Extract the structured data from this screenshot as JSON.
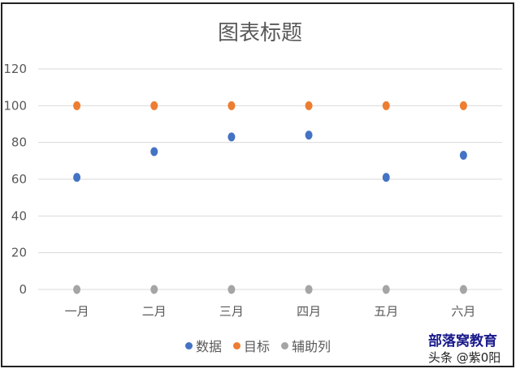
{
  "chart_data": {
    "type": "scatter",
    "title": "图表标题",
    "categories": [
      "一月",
      "二月",
      "三月",
      "四月",
      "五月",
      "六月"
    ],
    "series": [
      {
        "name": "数据",
        "color": "#4472C4",
        "values": [
          61,
          75,
          83,
          84,
          61,
          73
        ]
      },
      {
        "name": "目标",
        "color": "#ED7D31",
        "values": [
          100,
          100,
          100,
          100,
          100,
          100
        ]
      },
      {
        "name": "辅助列",
        "color": "#A5A5A5",
        "values": [
          0,
          0,
          0,
          0,
          0,
          0
        ]
      }
    ],
    "ylim": [
      0,
      120
    ],
    "yticks": [
      "0",
      "20",
      "40",
      "60",
      "80",
      "100",
      "120"
    ],
    "grid": true,
    "legend": "bottom"
  },
  "watermark": {
    "line1": "部落窝教育",
    "line2": "头条 @紫0阳"
  }
}
